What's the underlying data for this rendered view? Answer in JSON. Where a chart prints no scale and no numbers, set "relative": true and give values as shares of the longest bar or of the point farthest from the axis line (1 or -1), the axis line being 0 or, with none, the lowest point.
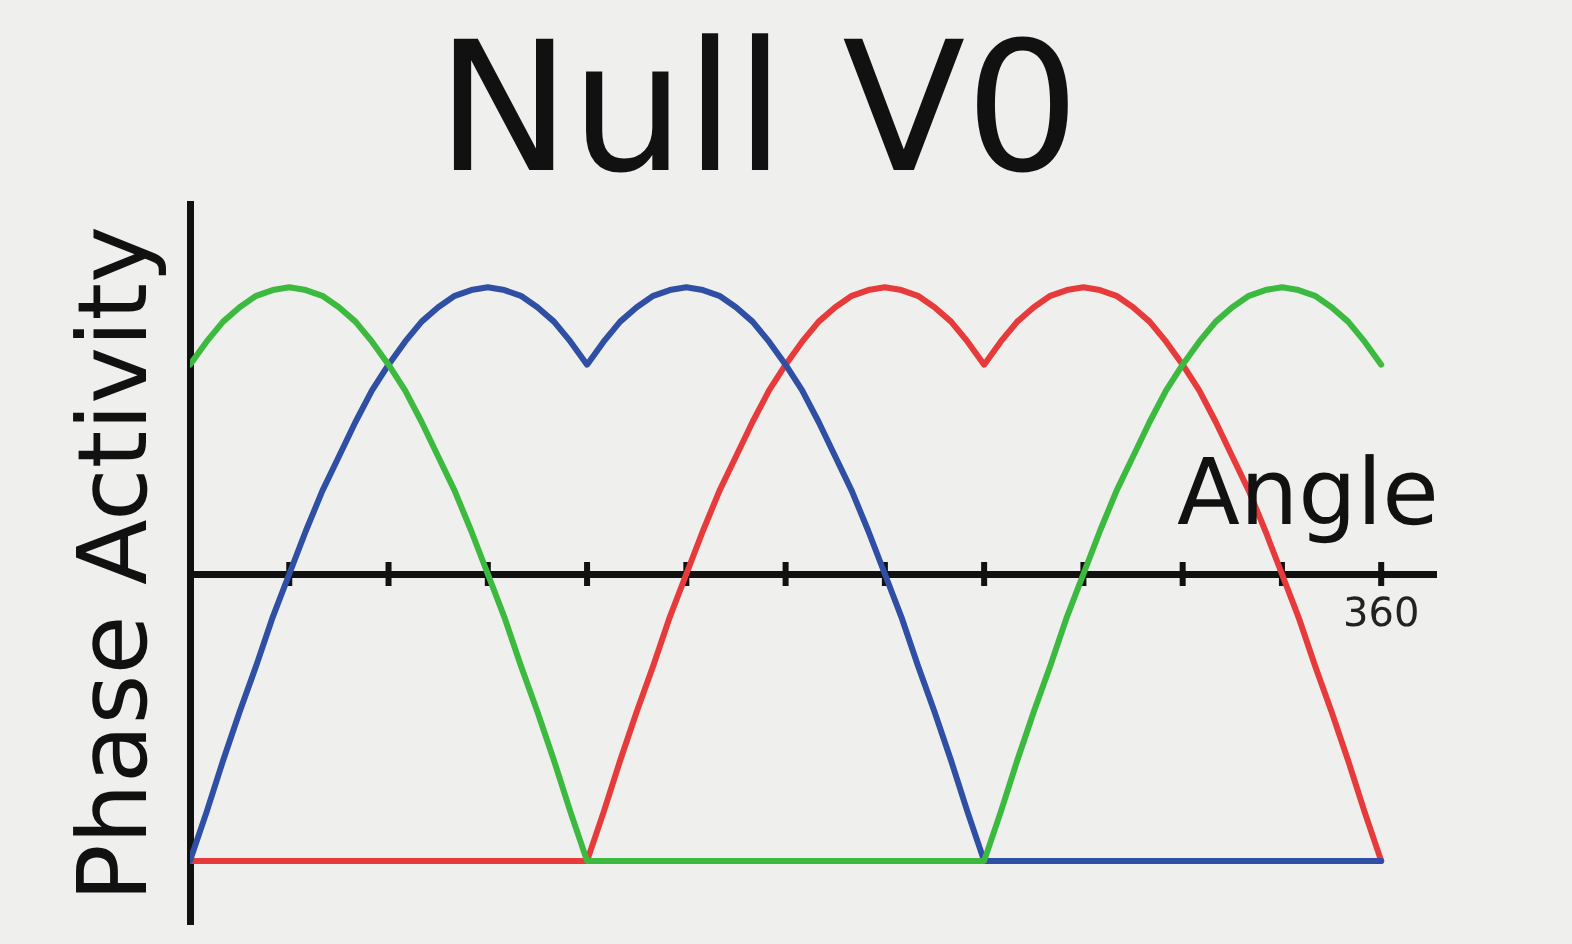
{
  "chart_data": {
    "type": "line",
    "title": "Null V0",
    "xlabel": "Angle",
    "ylabel": "Phase Activity",
    "relative": true,
    "annotations": [
      "360"
    ],
    "categories": [
      null,
      null,
      null,
      null,
      null,
      null,
      null,
      null,
      null,
      null,
      null,
      null,
      null,
      null,
      null,
      null,
      null,
      null,
      null,
      null,
      null,
      null,
      null,
      null,
      null,
      null,
      null,
      null,
      null,
      null,
      null,
      null,
      null,
      null,
      null,
      null,
      null,
      null,
      null,
      null,
      null,
      null,
      null,
      null,
      null,
      null,
      null,
      null,
      null,
      null,
      null,
      null,
      null,
      null,
      null,
      null,
      null,
      null,
      null,
      null,
      null,
      null,
      null,
      null,
      null,
      null,
      null,
      null,
      null,
      null,
      null,
      null,
      null
    ],
    "series": [
      {
        "color": "#3cb93f",
        "values": [
          0.73,
          0.81,
          0.88,
          0.93,
          0.97,
          0.99,
          1,
          0.99,
          0.97,
          0.93,
          0.88,
          0.81,
          0.73,
          0.64,
          0.53,
          0.41,
          0.29,
          0.15,
          0,
          -0.15,
          -0.32,
          -0.48,
          -0.65,
          -0.83,
          -1,
          -1,
          -1,
          -1,
          -1,
          -1,
          -1,
          -1,
          -1,
          -1,
          -1,
          -1,
          -1,
          -1,
          -1,
          -1,
          -1,
          -1,
          -1,
          -1,
          -1,
          -1,
          -1,
          -1,
          -1,
          -0.83,
          -0.65,
          -0.48,
          -0.32,
          -0.15,
          0,
          0.15,
          0.29,
          0.41,
          0.53,
          0.64,
          0.73,
          0.81,
          0.88,
          0.93,
          0.97,
          0.99,
          1,
          0.99,
          0.97,
          0.93,
          0.88,
          0.81,
          0.73
        ]
      },
      {
        "color": "#2f4fa4",
        "values": [
          -1,
          -0.83,
          -0.65,
          -0.48,
          -0.32,
          -0.15,
          0,
          0.15,
          0.29,
          0.41,
          0.53,
          0.64,
          0.73,
          0.81,
          0.88,
          0.93,
          0.97,
          0.99,
          1,
          0.99,
          0.97,
          0.93,
          0.88,
          0.81,
          0.73,
          0.81,
          0.88,
          0.93,
          0.97,
          0.99,
          1,
          0.99,
          0.97,
          0.93,
          0.88,
          0.81,
          0.73,
          0.64,
          0.53,
          0.41,
          0.29,
          0.15,
          0,
          -0.15,
          -0.32,
          -0.48,
          -0.65,
          -0.83,
          -1,
          -1,
          -1,
          -1,
          -1,
          -1,
          -1,
          -1,
          -1,
          -1,
          -1,
          -1,
          -1,
          -1,
          -1,
          -1,
          -1,
          -1,
          -1,
          -1,
          -1,
          -1,
          -1,
          -1,
          -1
        ]
      },
      {
        "color": "#e73b3b",
        "values": [
          -1,
          -1,
          -1,
          -1,
          -1,
          -1,
          -1,
          -1,
          -1,
          -1,
          -1,
          -1,
          -1,
          -1,
          -1,
          -1,
          -1,
          -1,
          -1,
          -1,
          -1,
          -1,
          -1,
          -1,
          -1,
          -0.83,
          -0.65,
          -0.48,
          -0.32,
          -0.15,
          0,
          0.15,
          0.29,
          0.41,
          0.53,
          0.64,
          0.73,
          0.81,
          0.88,
          0.93,
          0.97,
          0.99,
          1,
          0.99,
          0.97,
          0.93,
          0.88,
          0.81,
          0.73,
          0.81,
          0.88,
          0.93,
          0.97,
          0.99,
          1,
          0.99,
          0.97,
          0.93,
          0.88,
          0.81,
          0.73,
          0.64,
          0.53,
          0.41,
          0.29,
          0.15,
          0,
          -0.15,
          -0.32,
          -0.48,
          -0.65,
          -0.83,
          -1
        ]
      }
    ]
  }
}
